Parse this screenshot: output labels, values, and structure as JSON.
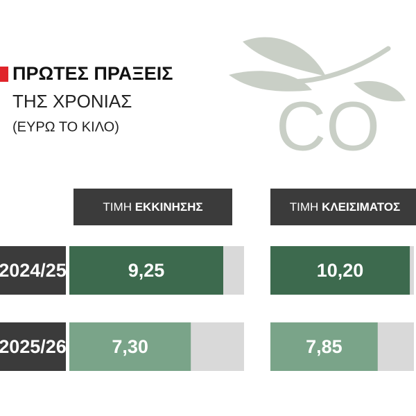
{
  "header": {
    "title": "ΠΡΩΤΕΣ ΠΡΑΞΕΙΣ",
    "subtitle": "ΤΗΣ ΧΡΟΝΙΑΣ",
    "unit": "(ΕΥΡΩ ΤΟ ΚΙΛΟ)",
    "logo": "CO"
  },
  "chart_data": [
    {
      "type": "bar",
      "orientation": "horizontal",
      "title": [
        "ΤΙΜΗ",
        "ΕΚΚΙΝΗΣΗΣ"
      ],
      "categories": [
        "2024/25",
        "2025/26"
      ],
      "values": [
        9.25,
        7.3
      ],
      "value_labels": [
        "9,25",
        "7,30"
      ],
      "colors": [
        "#3d6a4e",
        "#7aa489"
      ],
      "xlim": [
        0,
        10.5
      ]
    },
    {
      "type": "bar",
      "orientation": "horizontal",
      "title": [
        "ΤΙΜΗ",
        "ΚΛΕΙΣΙΜΑΤΟΣ"
      ],
      "values": [
        10.2,
        7.85
      ],
      "value_labels": [
        "10,20",
        "7,85"
      ],
      "colors": [
        "#3d6a4e",
        "#7aa489"
      ],
      "xlim": [
        0,
        10.5
      ]
    }
  ]
}
